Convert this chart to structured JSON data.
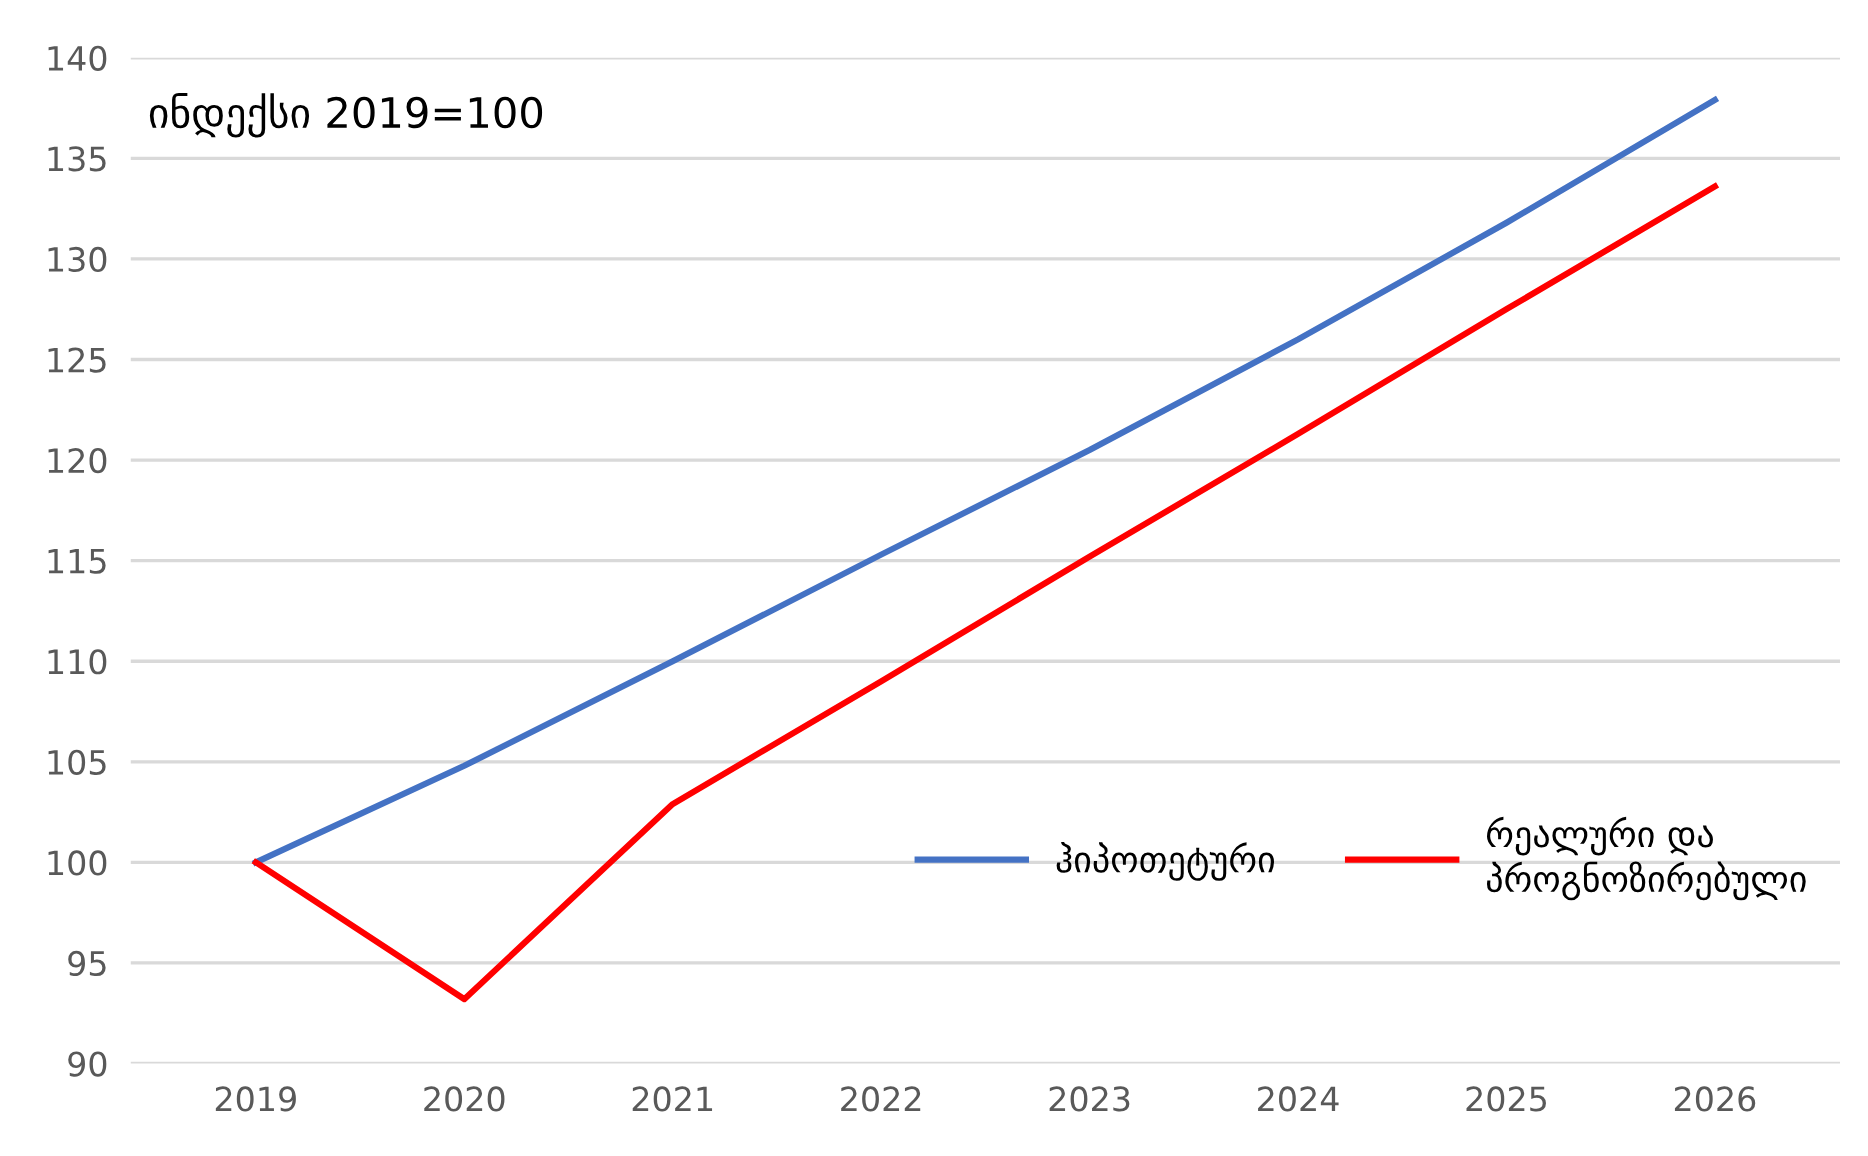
{
  "chart_data": {
    "type": "line",
    "categories": [
      "2019",
      "2020",
      "2021",
      "2022",
      "2023",
      "2024",
      "2025",
      "2026"
    ],
    "series": [
      {
        "name": "ჰიპოთეტური",
        "color": "#4472c4",
        "values": [
          100,
          104.8,
          110.0,
          115.3,
          120.5,
          126.0,
          131.8,
          137.9
        ]
      },
      {
        "name": "რეალური და პროგნოზირებული",
        "color": "#ff0000",
        "values": [
          100,
          93.2,
          102.9,
          109.0,
          115.2,
          121.3,
          127.5,
          133.6
        ]
      }
    ],
    "ylim": [
      90,
      140
    ],
    "yticks": [
      90,
      95,
      100,
      105,
      110,
      115,
      120,
      125,
      130,
      135,
      140
    ],
    "grid": "y",
    "legend": "bottom right",
    "marker": "none",
    "line_style": "solid",
    "annotations": [
      "ინდექსი 2019=100"
    ]
  }
}
